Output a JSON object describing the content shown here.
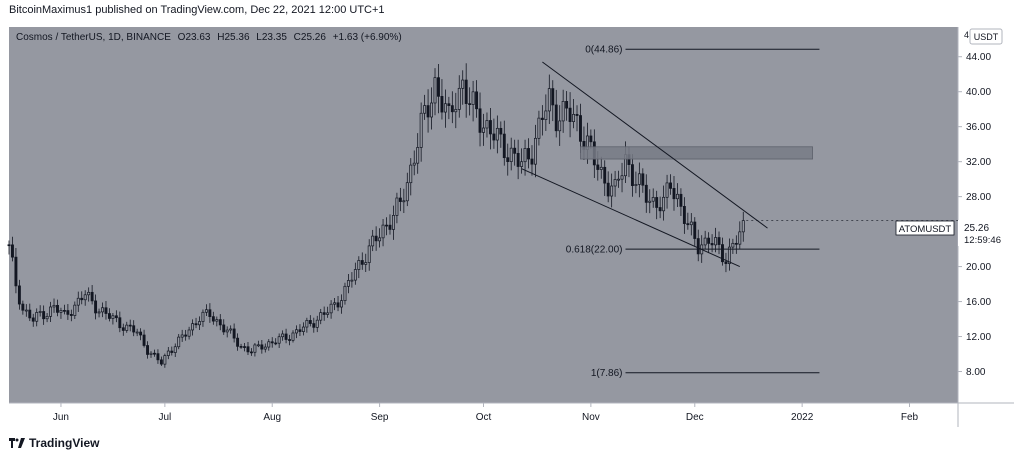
{
  "header": {
    "published": "BitcoinMaximus1 published on TradingView.com, Dec 22, 2021 12:00 UTC+1"
  },
  "legend": {
    "symbol": "Cosmos / TetherUS, 1D, BINANCE",
    "o_label": "O",
    "o_value": "23.63",
    "h_label": "H",
    "h_value": "25.36",
    "l_label": "L",
    "l_value": "23.35",
    "c_label": "C",
    "c_value": "25.26",
    "change": "+1.63 (+6.90%)"
  },
  "price_axis": {
    "currency": "USDT",
    "top_stub": "4"
  },
  "last_price": {
    "ticker": "ATOMUSDT",
    "price": "25.26",
    "countdown": "12:59:46"
  },
  "footer": {
    "brand": "TradingView"
  },
  "colors": {
    "chart_bg": "#9598a1",
    "candle": "#131722",
    "line": "#131722",
    "zone": "#787b86",
    "axis_bg": "#ffffff",
    "tag_bg": "#ffffff"
  },
  "chart_data": {
    "type": "candlestick",
    "title": "Cosmos / TetherUS, 1D, BINANCE",
    "x_ticks": [
      "Jun",
      "Jul",
      "Aug",
      "Sep",
      "Oct",
      "Nov",
      "Dec",
      "2022",
      "Feb"
    ],
    "x_tick_days": [
      0,
      30,
      61,
      92,
      122,
      153,
      183,
      214,
      245
    ],
    "x_domain_days": [
      -15,
      259
    ],
    "y_ticks": [
      "8.00",
      "12.00",
      "16.00",
      "20.00",
      "24.00",
      "28.00",
      "32.00",
      "36.00",
      "40.00",
      "44.00"
    ],
    "y_tick_values": [
      8,
      12,
      16,
      20,
      24,
      28,
      32,
      36,
      40,
      44
    ],
    "ylim": [
      4.4,
      47.4
    ],
    "grid": false,
    "trend_lines": [
      {
        "name": "upper-resistance",
        "from": [
          139,
          43.4
        ],
        "to": [
          204,
          24.4
        ]
      },
      {
        "name": "lower-support",
        "from": [
          133,
          31.2
        ],
        "to": [
          196,
          20.0
        ]
      }
    ],
    "horizontal_zone": {
      "from_day": 150,
      "to_day": 217,
      "low": 32.3,
      "high": 33.7
    },
    "fib_levels": [
      {
        "label": "0(44.86)",
        "value": 44.86,
        "from_day": 163,
        "to_day": 219
      },
      {
        "label": "0.618(22.00)",
        "value": 22.0,
        "from_day": 163,
        "to_day": 219
      },
      {
        "label": "1(7.86)",
        "value": 7.86,
        "from_day": 163,
        "to_day": 219
      }
    ],
    "last_price": 25.26,
    "closes": [
      {
        "day": -15,
        "close": 22.5
      },
      {
        "day": -13,
        "close": 17.5
      },
      {
        "day": -11,
        "close": 15.2
      },
      {
        "day": -8,
        "close": 14.0
      },
      {
        "day": -5,
        "close": 14.5
      },
      {
        "day": -2,
        "close": 15.5
      },
      {
        "day": 1,
        "close": 14.3
      },
      {
        "day": 4,
        "close": 15.6
      },
      {
        "day": 7,
        "close": 16.8
      },
      {
        "day": 10,
        "close": 15.5
      },
      {
        "day": 13,
        "close": 14.5
      },
      {
        "day": 16,
        "close": 13.8
      },
      {
        "day": 19,
        "close": 13.0
      },
      {
        "day": 22,
        "close": 12.5
      },
      {
        "day": 25,
        "close": 10.5
      },
      {
        "day": 27,
        "close": 9.6
      },
      {
        "day": 29,
        "close": 9.0
      },
      {
        "day": 31,
        "close": 10.3
      },
      {
        "day": 34,
        "close": 11.4
      },
      {
        "day": 37,
        "close": 12.8
      },
      {
        "day": 40,
        "close": 14.2
      },
      {
        "day": 43,
        "close": 14.5
      },
      {
        "day": 46,
        "close": 13.4
      },
      {
        "day": 49,
        "close": 12.2
      },
      {
        "day": 52,
        "close": 10.9
      },
      {
        "day": 55,
        "close": 10.3
      },
      {
        "day": 58,
        "close": 11.0
      },
      {
        "day": 61,
        "close": 11.3
      },
      {
        "day": 64,
        "close": 11.8
      },
      {
        "day": 67,
        "close": 12.3
      },
      {
        "day": 70,
        "close": 13.0
      },
      {
        "day": 73,
        "close": 13.8
      },
      {
        "day": 76,
        "close": 14.5
      },
      {
        "day": 79,
        "close": 15.6
      },
      {
        "day": 82,
        "close": 17.2
      },
      {
        "day": 85,
        "close": 19.5
      },
      {
        "day": 88,
        "close": 21.5
      },
      {
        "day": 90,
        "close": 22.5
      },
      {
        "day": 92,
        "close": 23.6
      },
      {
        "day": 95,
        "close": 25.5
      },
      {
        "day": 98,
        "close": 27.0
      },
      {
        "day": 100,
        "close": 29.5
      },
      {
        "day": 102,
        "close": 33.0
      },
      {
        "day": 104,
        "close": 36.0
      },
      {
        "day": 106,
        "close": 38.0
      },
      {
        "day": 108,
        "close": 41.0
      },
      {
        "day": 110,
        "close": 39.0
      },
      {
        "day": 112,
        "close": 36.5
      },
      {
        "day": 114,
        "close": 39.5
      },
      {
        "day": 116,
        "close": 41.0
      },
      {
        "day": 118,
        "close": 38.5
      },
      {
        "day": 121,
        "close": 37.0
      },
      {
        "day": 124,
        "close": 35.5
      },
      {
        "day": 127,
        "close": 34.0
      },
      {
        "day": 130,
        "close": 33.0
      },
      {
        "day": 133,
        "close": 31.5
      },
      {
        "day": 136,
        "close": 33.5
      },
      {
        "day": 139,
        "close": 37.0
      },
      {
        "day": 141,
        "close": 39.0
      },
      {
        "day": 143,
        "close": 37.5
      },
      {
        "day": 146,
        "close": 37.5
      },
      {
        "day": 149,
        "close": 36.5
      },
      {
        "day": 152,
        "close": 34.0
      },
      {
        "day": 154,
        "close": 32.0
      },
      {
        "day": 157,
        "close": 30.0
      },
      {
        "day": 160,
        "close": 28.5
      },
      {
        "day": 163,
        "close": 32.5
      },
      {
        "day": 165,
        "close": 30.5
      },
      {
        "day": 168,
        "close": 28.5
      },
      {
        "day": 171,
        "close": 27.5
      },
      {
        "day": 174,
        "close": 27.0
      },
      {
        "day": 176,
        "close": 29.5
      },
      {
        "day": 178,
        "close": 28.0
      },
      {
        "day": 181,
        "close": 24.5
      },
      {
        "day": 184,
        "close": 22.5
      },
      {
        "day": 187,
        "close": 23.0
      },
      {
        "day": 190,
        "close": 22.0
      },
      {
        "day": 192,
        "close": 21.0
      },
      {
        "day": 194,
        "close": 22.5
      },
      {
        "day": 196,
        "close": 23.4
      },
      {
        "day": 197,
        "close": 25.3
      }
    ]
  }
}
